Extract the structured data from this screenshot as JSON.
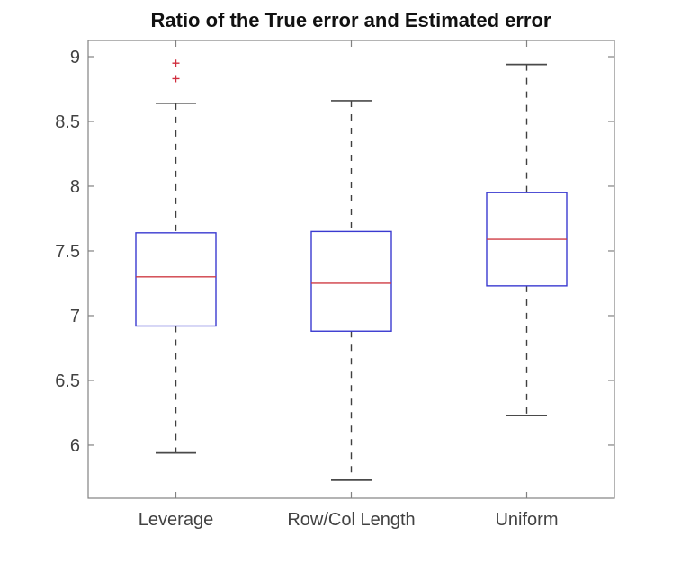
{
  "chart_data": {
    "type": "boxplot",
    "title": "Ratio of the True error and Estimated error",
    "xlabel": "",
    "ylabel": "",
    "categories": [
      "Leverage",
      "Row/Col Length",
      "Uniform"
    ],
    "y_ticks": [
      6,
      6.5,
      7,
      7.5,
      8,
      8.5,
      9
    ],
    "ylim": [
      5.59,
      9.125
    ],
    "grid": false,
    "legend": null,
    "series": [
      {
        "category": "Leverage",
        "whisker_low": 5.94,
        "q1": 6.92,
        "median": 7.3,
        "q3": 7.64,
        "whisker_high": 8.64,
        "outliers": [
          8.83,
          8.95
        ]
      },
      {
        "category": "Row/Col Length",
        "whisker_low": 5.73,
        "q1": 6.88,
        "median": 7.25,
        "q3": 7.65,
        "whisker_high": 8.66,
        "outliers": []
      },
      {
        "category": "Uniform",
        "whisker_low": 6.23,
        "q1": 7.23,
        "median": 7.59,
        "q3": 7.95,
        "whisker_high": 8.94,
        "outliers": []
      }
    ],
    "colors": {
      "box": "#3a3ad0",
      "median": "#cf3b44",
      "whisker": "#3f3f3f",
      "cap": "#4a4a4a",
      "outlier": "#d02d3d",
      "axis": "#828282",
      "tick_label": "#424242",
      "title": "#111111"
    }
  }
}
